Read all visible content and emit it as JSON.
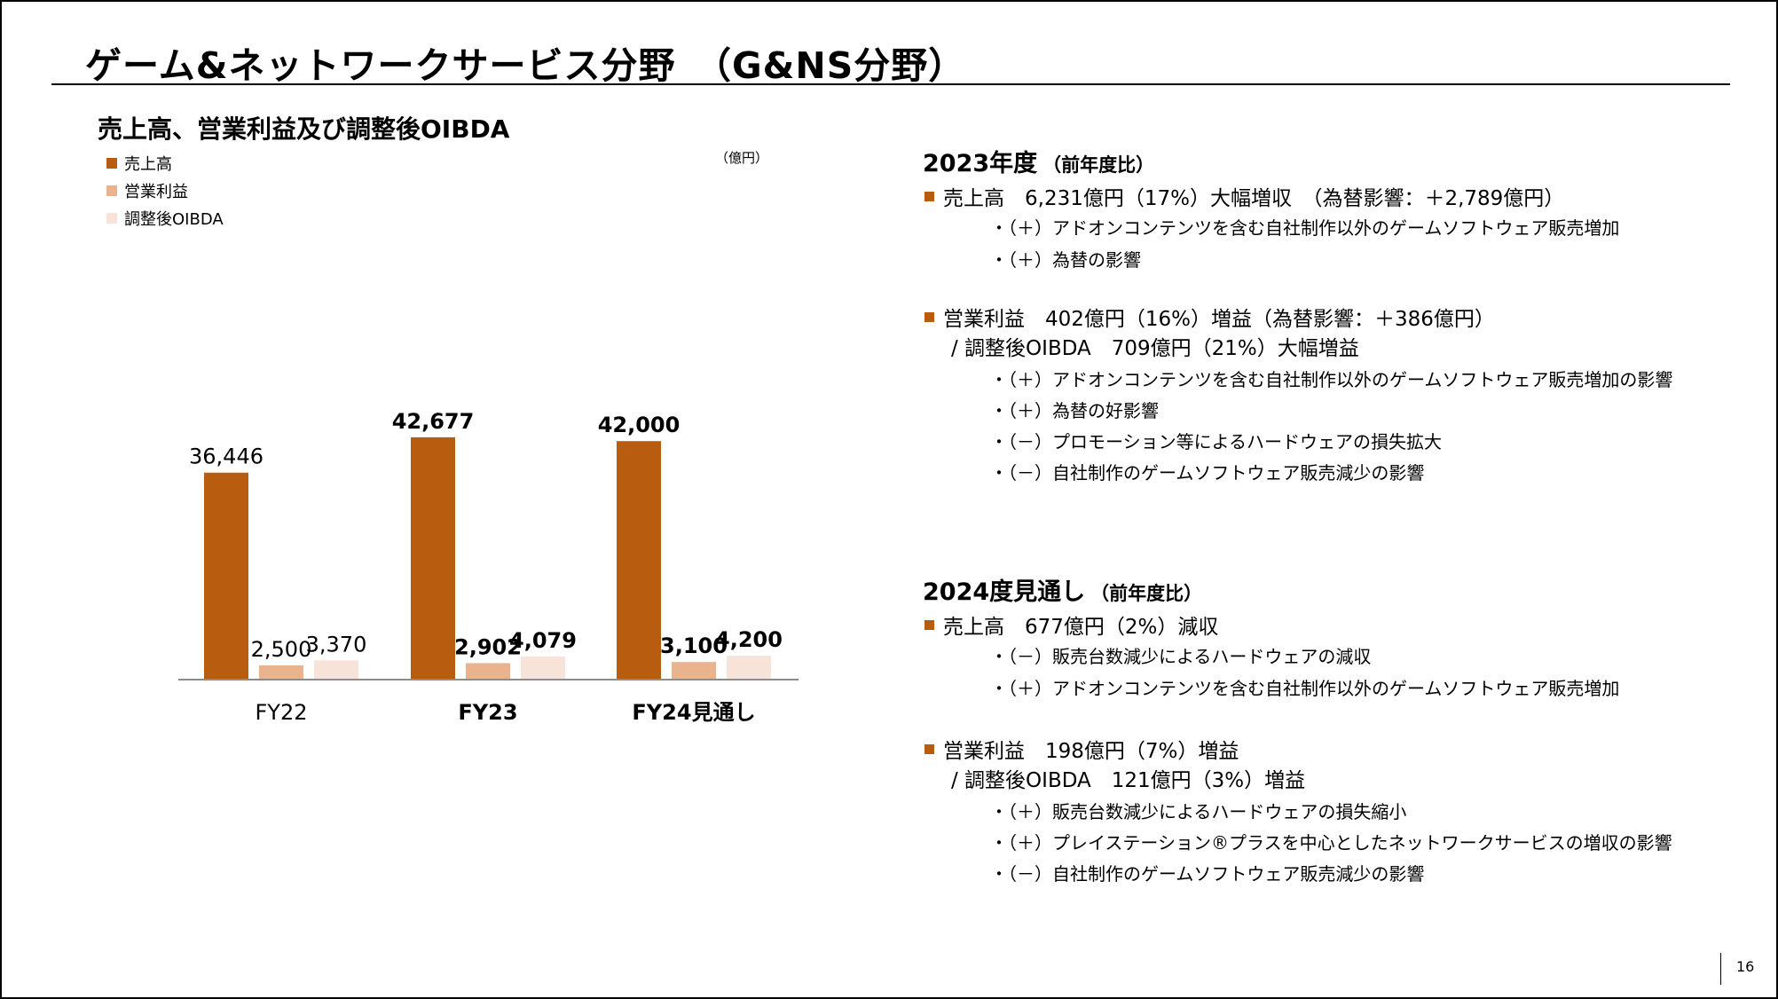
{
  "page": {
    "title": "ゲーム&ネットワークサービス分野　（G&NS分野）",
    "page_number": "16"
  },
  "chart_data": {
    "type": "bar",
    "title": "売上高、営業利益及び調整後OIBDA",
    "unit": "（億円）",
    "categories": [
      "FY22",
      "FY23",
      "FY24見通し"
    ],
    "series": [
      {
        "name": "売上高",
        "color": "#b85c0f",
        "values": [
          36446,
          42677,
          42000
        ],
        "labels": [
          "36,446",
          "42,677",
          "42,000"
        ]
      },
      {
        "name": "営業利益",
        "color": "#e8b38d",
        "values": [
          2500,
          2902,
          3100
        ],
        "labels": [
          "2,500",
          "2,902",
          "3,100"
        ]
      },
      {
        "name": "調整後OIBDA",
        "color": "#f7e3d7",
        "values": [
          3370,
          4079,
          4200
        ],
        "labels": [
          "3,370",
          "4,079",
          "4,200"
        ]
      }
    ],
    "emphasis": [
      false,
      true,
      true
    ],
    "xlabel": "",
    "ylabel": ""
  },
  "fy2023": {
    "heading": "2023年度",
    "heading_note": "（前年度比）",
    "sales_line": "売上高　6,231億円（17%）大幅増収　（為替影響：＋2,789億円）",
    "sales_bullets": [
      "・（＋）アドオンコンテンツを含む自社制作以外のゲームソフトウェア販売増加",
      "・（＋）為替の影響"
    ],
    "op_line": "営業利益　402億円（16%）増益（為替影響：＋386億円）",
    "oibda_line": "/ 調整後OIBDA　709億円（21%）大幅増益",
    "op_bullets": [
      "・（＋）アドオンコンテンツを含む自社制作以外のゲームソフトウェア販売増加の影響",
      "・（＋）為替の好影響",
      "・（－）プロモーション等によるハードウェアの損失拡大",
      "・（－）自社制作のゲームソフトウェア販売減少の影響"
    ]
  },
  "fy2024": {
    "heading": "2024度見通し",
    "heading_note": "（前年度比）",
    "sales_line": "売上高　677億円（2%）減収",
    "sales_bullets": [
      "・（－）販売台数減少によるハードウェアの減収",
      "・（＋）アドオンコンテンツを含む自社制作以外のゲームソフトウェア販売増加"
    ],
    "op_line": "営業利益　198億円（7%）増益",
    "oibda_line": "/ 調整後OIBDA　121億円（3%）増益",
    "op_bullets": [
      "・（＋）販売台数減少によるハードウェアの損失縮小",
      "・（＋）プレイステーション®プラスを中心としたネットワークサービスの増収の影響",
      "・（－）自社制作のゲームソフトウェア販売減少の影響"
    ]
  }
}
